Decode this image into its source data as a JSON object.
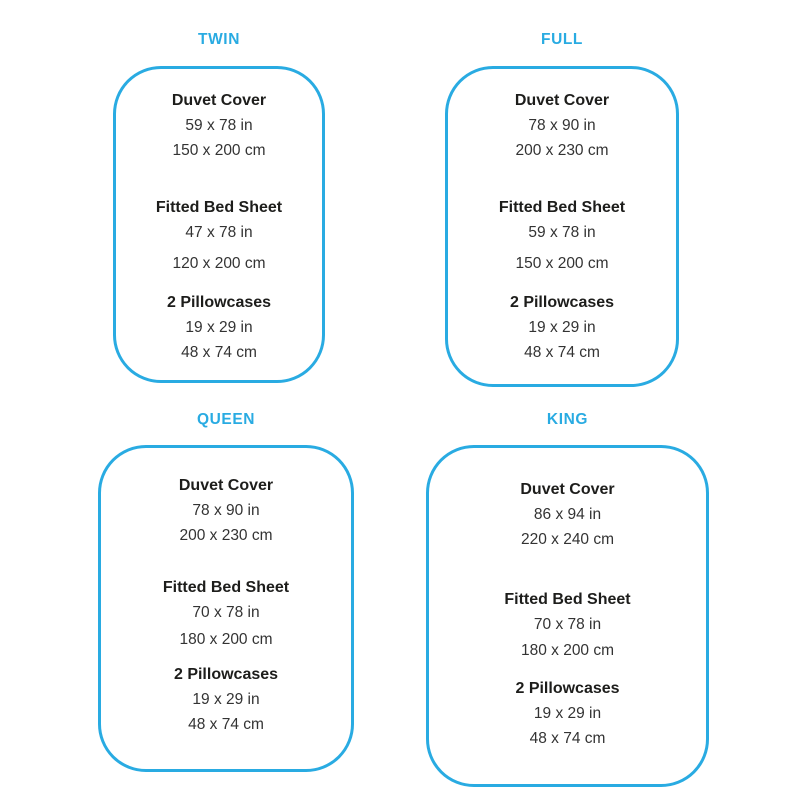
{
  "page": {
    "background": "#ffffff",
    "accent_color": "#29ABE2",
    "label_color": "#1d1d1b",
    "dimension_color": "#333333"
  },
  "panels": [
    {
      "id": "twin",
      "title": "TWIN",
      "sections": [
        {
          "label": "Duvet Cover",
          "inches": "59 x 78 in",
          "cm": "150 x 200 cm"
        },
        {
          "label": "Fitted Bed Sheet",
          "inches": "47 x 78 in",
          "cm": "120 x 200 cm"
        },
        {
          "label": "2 Pillowcases",
          "inches": "19 x 29 in",
          "cm": "48 x 74 cm"
        }
      ]
    },
    {
      "id": "full",
      "title": "FULL",
      "sections": [
        {
          "label": "Duvet Cover",
          "inches": "78 x 90 in",
          "cm": "200 x 230 cm"
        },
        {
          "label": "Fitted Bed Sheet",
          "inches": "59 x 78 in",
          "cm": "150 x 200 cm"
        },
        {
          "label": "2 Pillowcases",
          "inches": "19 x 29 in",
          "cm": "48 x 74 cm"
        }
      ]
    },
    {
      "id": "queen",
      "title": "QUEEN",
      "sections": [
        {
          "label": "Duvet Cover",
          "inches": "78 x 90 in",
          "cm": "200 x 230 cm"
        },
        {
          "label": "Fitted Bed Sheet",
          "inches": "70 x 78 in",
          "cm": "180 x 200 cm"
        },
        {
          "label": "2 Pillowcases",
          "inches": "19 x 29 in",
          "cm": "48 x 74 cm"
        }
      ]
    },
    {
      "id": "king",
      "title": "KING",
      "sections": [
        {
          "label": "Duvet Cover",
          "inches": "86 x 94 in",
          "cm": "220 x 240 cm"
        },
        {
          "label": "Fitted Bed Sheet",
          "inches": "70 x 78 in",
          "cm": "180 x 200 cm"
        },
        {
          "label": "2 Pillowcases",
          "inches": "19 x 29 in",
          "cm": "48 x 74 cm"
        }
      ]
    }
  ]
}
